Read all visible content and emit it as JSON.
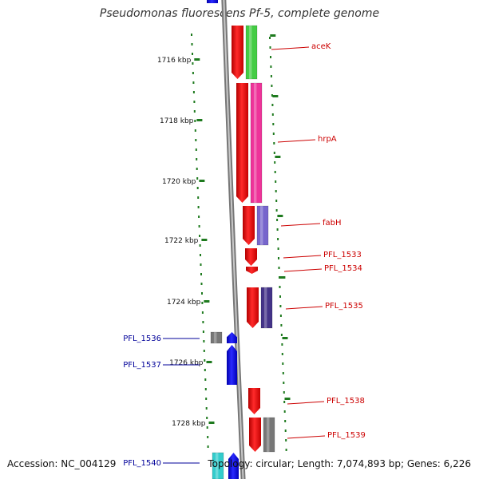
{
  "header": {
    "title": "Pseudomonas fluorescens Pf-5, complete genome"
  },
  "footer": {
    "accession": "Accession: NC_004129",
    "topology": "Topology: circular; Length: 7,074,893 bp; Genes: 6,226"
  },
  "colors": {
    "backbone": "#8a8a8a",
    "tick": "#1e7a1e",
    "label_forward": "#cc0000",
    "label_reverse": "#000099"
  },
  "ticks": [
    "1716 kbp",
    "1718 kbp",
    "1720 kbp",
    "1722 kbp",
    "1724 kbp",
    "1726 kbp",
    "1728 kbp"
  ],
  "genes": [
    {
      "label": "aceK",
      "strand": "+",
      "cog_color": "#44cc44"
    },
    {
      "label": "hrpA",
      "strand": "+",
      "cog_color": "#ee3399"
    },
    {
      "label": "fabH",
      "strand": "+",
      "cog_color": "#7766cc"
    },
    {
      "label": "PFL_1533",
      "strand": "+",
      "cog_color": ""
    },
    {
      "label": "PFL_1534",
      "strand": "+",
      "cog_color": ""
    },
    {
      "label": "PFL_1535",
      "strand": "+",
      "cog_color": "#443388"
    },
    {
      "label": "PFL_1536",
      "strand": "-",
      "cog_color": "#777777"
    },
    {
      "label": "PFL_1537",
      "strand": "-",
      "cog_color": ""
    },
    {
      "label": "PFL_1538",
      "strand": "+",
      "cog_color": ""
    },
    {
      "label": "PFL_1539",
      "strand": "+",
      "cog_color": "#777777"
    },
    {
      "label": "PFL_1540",
      "strand": "-",
      "cog_color": "#33cccc"
    }
  ]
}
